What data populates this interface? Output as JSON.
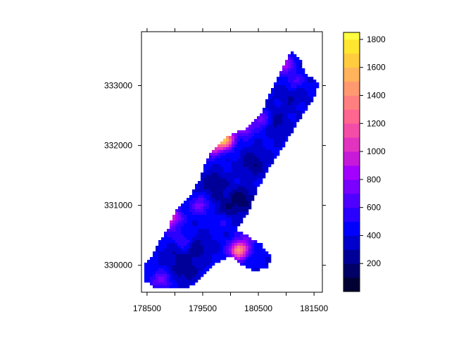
{
  "chart_data": {
    "type": "heatmap",
    "title": "",
    "xlabel": "",
    "ylabel": "",
    "xlim": [
      178400,
      181650
    ],
    "ylim": [
      329550,
      333900
    ],
    "x_ticks": [
      178500,
      179000,
      179500,
      180000,
      180500,
      181000,
      181500
    ],
    "x_tick_labels": [
      "178500",
      "179500",
      "180500",
      "181500"
    ],
    "y_ticks": [
      330000,
      331000,
      332000,
      333000
    ],
    "y_tick_labels": [
      "330000",
      "331000",
      "332000",
      "333000"
    ],
    "outline": [
      [
        178450,
        330000
      ],
      [
        178650,
        330250
      ],
      [
        178750,
        330450
      ],
      [
        178900,
        330650
      ],
      [
        179000,
        330900
      ],
      [
        179150,
        331050
      ],
      [
        179300,
        331200
      ],
      [
        179450,
        331450
      ],
      [
        179550,
        331700
      ],
      [
        179650,
        331900
      ],
      [
        179950,
        332150
      ],
      [
        180300,
        332300
      ],
      [
        180550,
        332550
      ],
      [
        180700,
        332850
      ],
      [
        180900,
        333250
      ],
      [
        181100,
        333600
      ],
      [
        181250,
        333450
      ],
      [
        181350,
        333200
      ],
      [
        181600,
        333050
      ],
      [
        181500,
        332800
      ],
      [
        181250,
        332450
      ],
      [
        181000,
        332050
      ],
      [
        180750,
        331700
      ],
      [
        180500,
        331300
      ],
      [
        180300,
        330850
      ],
      [
        180100,
        330600
      ],
      [
        180300,
        330500
      ],
      [
        180550,
        330350
      ],
      [
        180750,
        330150
      ],
      [
        180650,
        329950
      ],
      [
        180400,
        329900
      ],
      [
        180200,
        330000
      ],
      [
        180000,
        330150
      ],
      [
        179850,
        330100
      ],
      [
        179700,
        330000
      ],
      [
        179500,
        329800
      ],
      [
        179300,
        329650
      ],
      [
        179000,
        329600
      ],
      [
        178700,
        329600
      ],
      [
        178450,
        329750
      ]
    ],
    "hotspots": [
      {
        "x": 180150,
        "y": 330250,
        "value": 1450
      },
      {
        "x": 180350,
        "y": 330500,
        "value": 700
      },
      {
        "x": 179900,
        "y": 332100,
        "value": 1500
      },
      {
        "x": 179700,
        "y": 332000,
        "value": 1050
      },
      {
        "x": 179450,
        "y": 331900,
        "value": 850
      },
      {
        "x": 178950,
        "y": 330800,
        "value": 1000
      },
      {
        "x": 178800,
        "y": 330650,
        "value": 750
      },
      {
        "x": 179450,
        "y": 331000,
        "value": 750
      },
      {
        "x": 180950,
        "y": 333350,
        "value": 900
      },
      {
        "x": 180550,
        "y": 332450,
        "value": 800
      },
      {
        "x": 180250,
        "y": 332300,
        "value": 850
      },
      {
        "x": 178750,
        "y": 329750,
        "value": 750
      },
      {
        "x": 179850,
        "y": 330750,
        "value": 600
      },
      {
        "x": 179150,
        "y": 330400,
        "value": 650
      },
      {
        "x": 181150,
        "y": 333050,
        "value": 700
      }
    ],
    "lowspots": [
      {
        "x": 180200,
        "y": 331100,
        "value": 150
      },
      {
        "x": 180400,
        "y": 331700,
        "value": 200
      },
      {
        "x": 179700,
        "y": 331350,
        "value": 200
      },
      {
        "x": 179400,
        "y": 330300,
        "value": 250
      },
      {
        "x": 179200,
        "y": 329900,
        "value": 250
      },
      {
        "x": 180800,
        "y": 332400,
        "value": 250
      },
      {
        "x": 181100,
        "y": 332900,
        "value": 250
      },
      {
        "x": 179900,
        "y": 330900,
        "value": 250
      },
      {
        "x": 179000,
        "y": 330150,
        "value": 300
      }
    ],
    "background_value": 420,
    "colorkey": {
      "breaks": [
        0,
        100,
        200,
        300,
        400,
        500,
        600,
        700,
        800,
        900,
        1000,
        1100,
        1200,
        1300,
        1400,
        1500,
        1600,
        1700,
        1800,
        1850
      ],
      "colors": [
        "#000033",
        "#000066",
        "#000099",
        "#0000CC",
        "#0000FF",
        "#2A00FF",
        "#5000FF",
        "#7A00FF",
        "#A400FF",
        "#C71AD9",
        "#E133C0",
        "#F44DA8",
        "#FF6690",
        "#FF7F80",
        "#FF9970",
        "#FFB35A",
        "#FFCC40",
        "#FFE630",
        "#FFFF40"
      ],
      "tick_values": [
        200,
        400,
        600,
        800,
        1000,
        1200,
        1400,
        1600,
        1800
      ],
      "tick_labels": [
        "200",
        "400",
        "600",
        "800",
        "1000",
        "1200",
        "1400",
        "1600",
        "1800"
      ]
    }
  }
}
